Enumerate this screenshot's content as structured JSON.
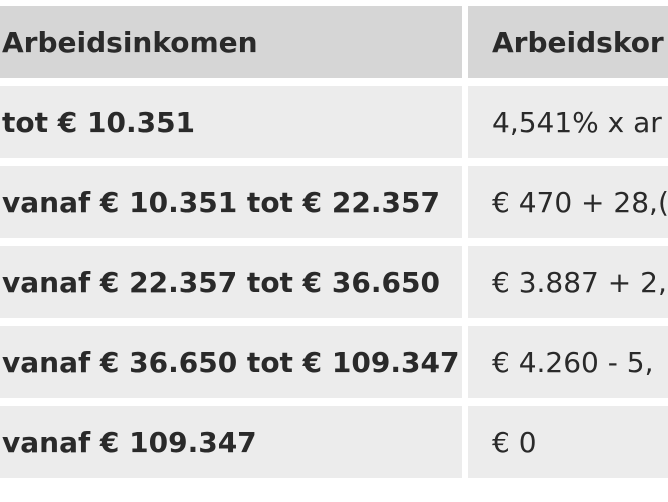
{
  "table": {
    "headers": [
      "Arbeidsinkomen",
      "Arbeidskor"
    ],
    "rows": [
      [
        "tot € 10.351",
        "4,541% x ar"
      ],
      [
        "vanaf € 10.351 tot € 22.357",
        "€ 470 + 28,("
      ],
      [
        "vanaf € 22.357 tot € 36.650",
        "€ 3.887 + 2,"
      ],
      [
        "vanaf € 36.650 tot € 109.347",
        "€ 4.260 - 5,"
      ],
      [
        "vanaf € 109.347",
        "€ 0"
      ]
    ]
  }
}
